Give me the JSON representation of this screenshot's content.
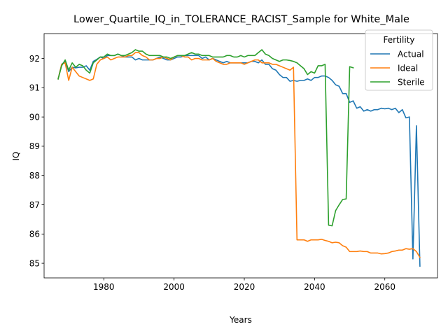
{
  "chart_data": {
    "type": "line",
    "title": "Lower_Quartile_IQ_in_TOLERANCE_RACIST_Sample for White_Male",
    "xlabel": "Years",
    "ylabel": "IQ",
    "xlim": [
      1963,
      2075
    ],
    "ylim": [
      84.5,
      92.85
    ],
    "xticks": [
      1980,
      2000,
      2020,
      2040,
      2060
    ],
    "yticks": [
      85,
      86,
      87,
      88,
      89,
      90,
      91,
      92
    ],
    "grid": false,
    "legend": {
      "title": "Fertility",
      "position": "top-right"
    },
    "series": [
      {
        "name": "Actual",
        "color": "#1f77b4",
        "x": [
          1967,
          1968,
          1969,
          1970,
          1971,
          1972,
          1973,
          1974,
          1975,
          1976,
          1977,
          1978,
          1979,
          1980,
          1981,
          1982,
          1983,
          1984,
          1985,
          1986,
          1987,
          1988,
          1989,
          1990,
          1991,
          1992,
          1993,
          1994,
          1995,
          1996,
          1997,
          1998,
          1999,
          2000,
          2001,
          2002,
          2003,
          2004,
          2005,
          2006,
          2007,
          2008,
          2009,
          2010,
          2011,
          2012,
          2013,
          2014,
          2015,
          2016,
          2017,
          2018,
          2019,
          2020,
          2021,
          2022,
          2023,
          2024,
          2025,
          2026,
          2027,
          2028,
          2029,
          2030,
          2031,
          2032,
          2033,
          2034,
          2035,
          2036,
          2037,
          2038,
          2039,
          2040,
          2041,
          2042,
          2043,
          2044,
          2045,
          2046,
          2047,
          2048,
          2049,
          2050,
          2051,
          2052,
          2053,
          2054,
          2055,
          2056,
          2057,
          2058,
          2059,
          2060,
          2061,
          2062,
          2063,
          2064,
          2065,
          2066,
          2067,
          2068,
          2069,
          2070
        ],
        "y": [
          91.3,
          91.8,
          91.9,
          91.55,
          91.7,
          91.68,
          91.7,
          91.7,
          91.75,
          91.6,
          91.9,
          91.97,
          92.05,
          92.0,
          92.1,
          92.1,
          92.1,
          92.15,
          92.1,
          92.05,
          92.05,
          92.05,
          91.95,
          92.0,
          91.95,
          91.95,
          91.95,
          91.95,
          92.0,
          92.05,
          92.0,
          91.95,
          91.95,
          92.0,
          92.05,
          92.05,
          92.1,
          92.1,
          92.1,
          92.1,
          92.1,
          92.0,
          92.05,
          91.95,
          92.0,
          91.95,
          91.9,
          91.85,
          91.9,
          91.85,
          91.85,
          91.85,
          91.85,
          91.85,
          91.85,
          91.9,
          91.9,
          91.85,
          91.95,
          91.8,
          91.8,
          91.65,
          91.6,
          91.45,
          91.35,
          91.35,
          91.22,
          91.25,
          91.22,
          91.25,
          91.25,
          91.3,
          91.25,
          91.35,
          91.35,
          91.4,
          91.4,
          91.35,
          91.25,
          91.1,
          91.05,
          90.8,
          90.8,
          90.5,
          90.55,
          90.3,
          90.35,
          90.2,
          90.25,
          90.2,
          90.25,
          90.25,
          90.3,
          90.28,
          90.3,
          90.25,
          90.3,
          90.15,
          90.25,
          89.97,
          90.0,
          85.15,
          89.7,
          84.9
        ]
      },
      {
        "name": "Ideal",
        "color": "#ff7f0e",
        "x": [
          1967,
          1968,
          1969,
          1970,
          1971,
          1972,
          1973,
          1974,
          1975,
          1976,
          1977,
          1978,
          1979,
          1980,
          1981,
          1982,
          1983,
          1984,
          1985,
          1986,
          1987,
          1988,
          1989,
          1990,
          1991,
          1992,
          1993,
          1994,
          1995,
          1996,
          1997,
          1998,
          1999,
          2000,
          2001,
          2002,
          2003,
          2004,
          2005,
          2006,
          2007,
          2008,
          2009,
          2010,
          2011,
          2012,
          2013,
          2014,
          2015,
          2016,
          2017,
          2018,
          2019,
          2020,
          2021,
          2022,
          2023,
          2024,
          2025,
          2026,
          2027,
          2028,
          2029,
          2030,
          2031,
          2032,
          2033,
          2034,
          2035,
          2036,
          2037,
          2038,
          2039,
          2040,
          2041,
          2042,
          2043,
          2044,
          2045,
          2046,
          2047,
          2048,
          2049,
          2050,
          2051,
          2052,
          2053,
          2054,
          2055,
          2056,
          2057,
          2058,
          2059,
          2060,
          2061,
          2062,
          2063,
          2064,
          2065,
          2066,
          2067,
          2068,
          2069,
          2070
        ],
        "y": [
          91.3,
          91.8,
          91.85,
          91.25,
          91.7,
          91.55,
          91.4,
          91.35,
          91.3,
          91.25,
          91.3,
          91.8,
          91.95,
          92.0,
          92.05,
          91.95,
          92.0,
          92.05,
          92.05,
          92.05,
          92.1,
          92.1,
          92.2,
          92.2,
          92.1,
          92.05,
          91.95,
          91.95,
          92.0,
          92.0,
          92.05,
          92.0,
          91.95,
          92.05,
          92.1,
          92.1,
          92.05,
          92.05,
          91.95,
          92.0,
          92.0,
          91.95,
          91.95,
          91.95,
          92.0,
          91.9,
          91.85,
          91.8,
          91.8,
          91.85,
          91.85,
          91.85,
          91.85,
          91.8,
          91.85,
          91.9,
          91.95,
          91.95,
          91.85,
          91.85,
          91.85,
          91.8,
          91.8,
          91.75,
          91.7,
          91.65,
          91.6,
          91.7,
          85.8,
          85.8,
          85.8,
          85.75,
          85.8,
          85.8,
          85.8,
          85.82,
          85.78,
          85.75,
          85.7,
          85.72,
          85.7,
          85.6,
          85.55,
          85.4,
          85.4,
          85.4,
          85.42,
          85.4,
          85.4,
          85.35,
          85.35,
          85.35,
          85.32,
          85.33,
          85.35,
          85.4,
          85.42,
          85.45,
          85.45,
          85.5,
          85.48,
          85.5,
          85.4,
          85.2
        ]
      },
      {
        "name": "Sterile",
        "color": "#2ca02c",
        "x": [
          1967,
          1968,
          1969,
          1970,
          1971,
          1972,
          1973,
          1974,
          1975,
          1976,
          1977,
          1978,
          1979,
          1980,
          1981,
          1982,
          1983,
          1984,
          1985,
          1986,
          1987,
          1988,
          1989,
          1990,
          1991,
          1992,
          1993,
          1994,
          1995,
          1996,
          1997,
          1998,
          1999,
          2000,
          2001,
          2002,
          2003,
          2004,
          2005,
          2006,
          2007,
          2008,
          2009,
          2010,
          2011,
          2012,
          2013,
          2014,
          2015,
          2016,
          2017,
          2018,
          2019,
          2020,
          2021,
          2022,
          2023,
          2024,
          2025,
          2026,
          2027,
          2028,
          2029,
          2030,
          2031,
          2032,
          2033,
          2034,
          2035,
          2036,
          2037,
          2038,
          2039,
          2040,
          2041,
          2042,
          2043,
          2044,
          2045,
          2046,
          2047,
          2048,
          2049,
          2050,
          2051
        ],
        "y": [
          91.3,
          91.75,
          91.95,
          91.6,
          91.85,
          91.7,
          91.8,
          91.75,
          91.6,
          91.5,
          91.85,
          91.95,
          92.05,
          92.05,
          92.15,
          92.1,
          92.1,
          92.15,
          92.1,
          92.1,
          92.15,
          92.2,
          92.3,
          92.25,
          92.25,
          92.15,
          92.1,
          92.1,
          92.1,
          92.1,
          92.05,
          92.05,
          92.0,
          92.05,
          92.1,
          92.1,
          92.1,
          92.15,
          92.2,
          92.15,
          92.15,
          92.1,
          92.1,
          92.1,
          92.05,
          92.05,
          92.05,
          92.05,
          92.1,
          92.1,
          92.05,
          92.05,
          92.1,
          92.05,
          92.1,
          92.1,
          92.1,
          92.2,
          92.3,
          92.15,
          92.1,
          92.0,
          91.95,
          91.9,
          91.95,
          91.95,
          91.93,
          91.9,
          91.85,
          91.75,
          91.65,
          91.45,
          91.55,
          91.5,
          91.75,
          91.75,
          91.8,
          86.3,
          86.28,
          86.8,
          87.0,
          87.18,
          87.2,
          91.72,
          91.68
        ]
      }
    ]
  }
}
